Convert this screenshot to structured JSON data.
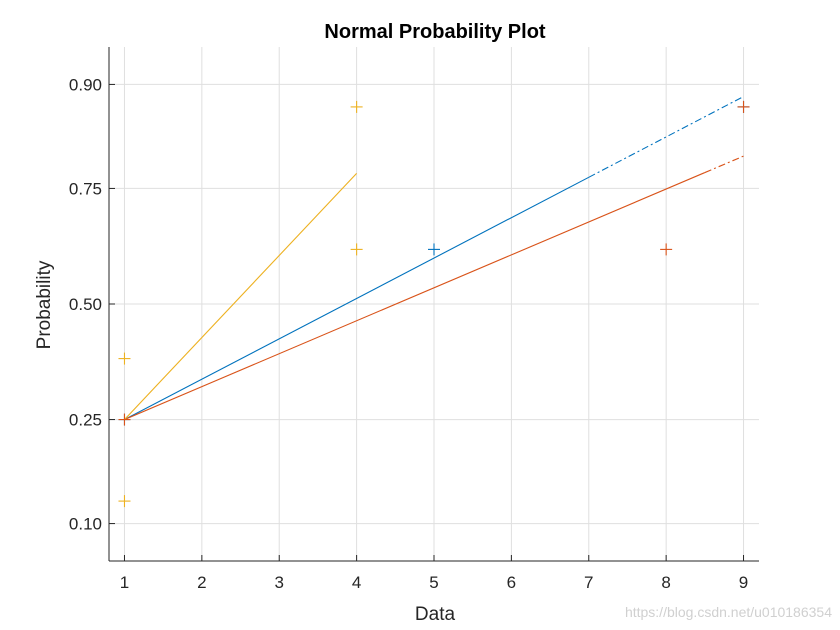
{
  "chart_data": {
    "type": "scatter",
    "title": "Normal Probability Plot",
    "xlabel": "Data",
    "ylabel": "Probability",
    "xlim": [
      0.8,
      9.2
    ],
    "xticks": [
      1,
      2,
      3,
      4,
      5,
      6,
      7,
      8,
      9
    ],
    "xtick_labels": [
      "1",
      "2",
      "3",
      "4",
      "5",
      "6",
      "7",
      "8",
      "9"
    ],
    "yticks": [
      0.1,
      0.25,
      0.5,
      0.75,
      0.9
    ],
    "ytick_labels": [
      "0.10",
      "0.25",
      "0.50",
      "0.75",
      "0.90"
    ],
    "y_scale": "normal probability",
    "grid": true,
    "series": [
      {
        "color": "#0072BD",
        "points": [
          {
            "x": 1,
            "y": 0.25
          },
          {
            "x": 5,
            "y": 0.625
          },
          {
            "x": 9,
            "y": 0.875
          }
        ],
        "fit_line": [
          {
            "x": 1,
            "y": 0.25
          },
          {
            "x": 9,
            "y": 0.887
          }
        ],
        "fit_solid_until_x": 7.0
      },
      {
        "color": "#D95319",
        "points": [
          {
            "x": 1,
            "y": 0.25
          },
          {
            "x": 8,
            "y": 0.625
          },
          {
            "x": 9,
            "y": 0.875
          }
        ],
        "fit_line": [
          {
            "x": 1,
            "y": 0.25
          },
          {
            "x": 9,
            "y": 0.806
          }
        ],
        "fit_solid_until_x": 8.5
      },
      {
        "color": "#EDB120",
        "points": [
          {
            "x": 1,
            "y": 0.125
          },
          {
            "x": 1,
            "y": 0.375
          },
          {
            "x": 4,
            "y": 0.625
          },
          {
            "x": 4,
            "y": 0.875
          }
        ],
        "fit_line": [
          {
            "x": 1,
            "y": 0.25
          },
          {
            "x": 4,
            "y": 0.777
          }
        ],
        "fit_solid_until_x": 4
      }
    ]
  },
  "watermark": "https://blog.csdn.net/u010186354"
}
